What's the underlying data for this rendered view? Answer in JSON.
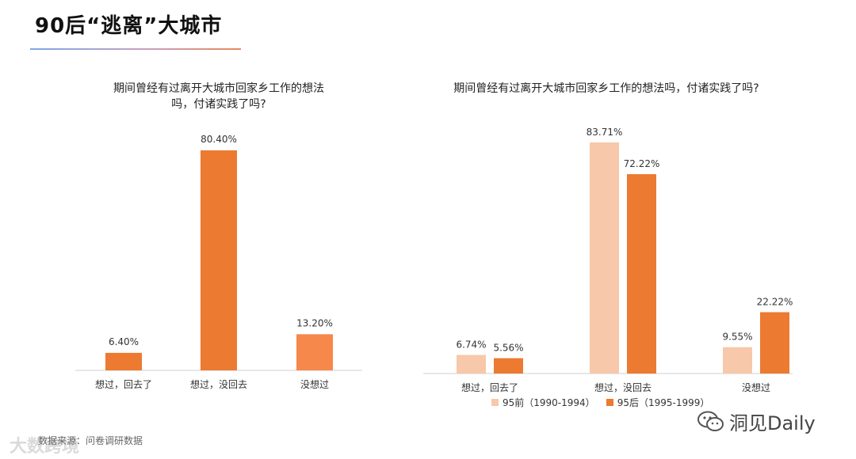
{
  "header": {
    "title": "90后“逃离”大城市"
  },
  "chart_data": [
    {
      "type": "bar",
      "title": "期间曾经有过离开大城市回家乡工作的想法吗，付诸实践了吗?",
      "title_lines": [
        "期间曾经有过离开大城市回家乡工作的想法",
        "吗，付诸实践了吗?"
      ],
      "categories": [
        "想过，回去了",
        "想过，没回去",
        "没想过"
      ],
      "values": [
        6.4,
        80.4,
        13.2
      ],
      "value_labels": [
        "6.40%",
        "80.40%",
        "13.20%"
      ],
      "unit": "%",
      "ylim": [
        0,
        100
      ],
      "grid": false,
      "colors": [
        "#ec7a31",
        "#ec7a31",
        "#f5884a"
      ]
    },
    {
      "type": "bar",
      "title": "期间曾经有过离开大城市回家乡工作的想法吗，付诸实践了吗?",
      "categories": [
        "想过，回去了",
        "想过，没回去",
        "没想过"
      ],
      "series": [
        {
          "name": "95前（1990-1994）",
          "values": [
            6.74,
            83.71,
            9.55
          ],
          "value_labels": [
            "6.74%",
            "83.71%",
            "9.55%"
          ],
          "color": "#f7c8a9"
        },
        {
          "name": "95后（1995-1999）",
          "values": [
            5.56,
            72.22,
            22.22
          ],
          "value_labels": [
            "5.56%",
            "72.22%",
            "22.22%"
          ],
          "color": "#ec7a31"
        }
      ],
      "unit": "%",
      "ylim": [
        0,
        100
      ],
      "grid": false,
      "legend_position": "bottom"
    }
  ],
  "footer": {
    "source": "数据来源：问卷调研数据",
    "brand_watermark": "大数跨境",
    "account_watermark": "洞见Daily"
  }
}
